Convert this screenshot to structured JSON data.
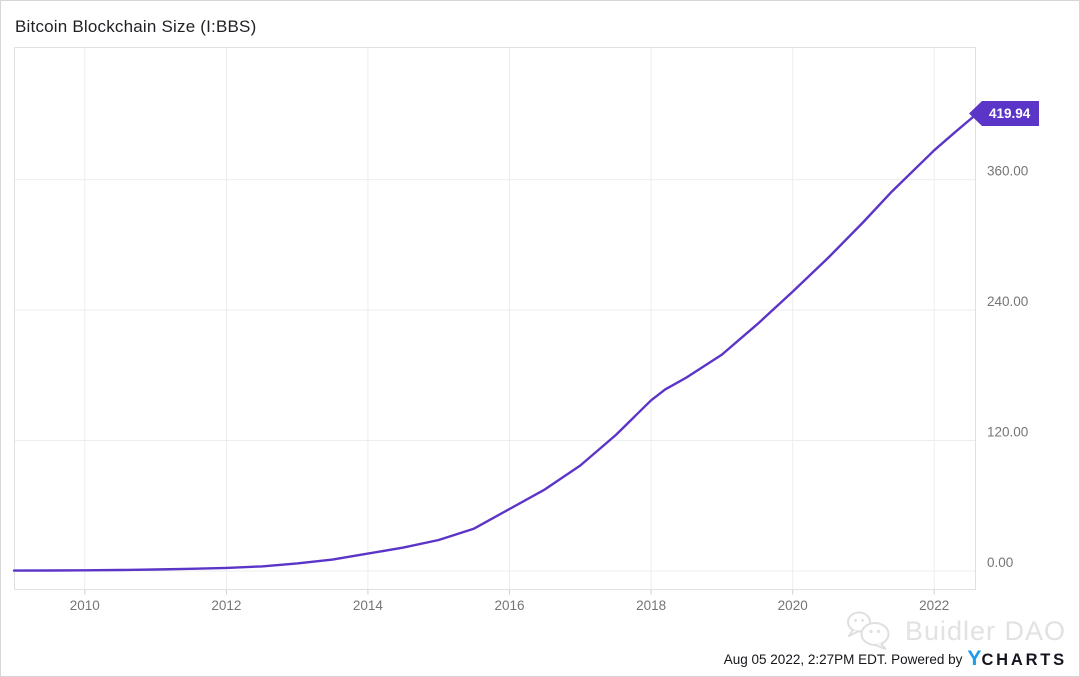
{
  "page": {
    "title": "Bitcoin Blockchain Size (I:BBS)"
  },
  "chart_data": {
    "type": "line",
    "title": "Bitcoin Blockchain Size (I:BBS)",
    "line_color": "#5b35c7",
    "grid": true,
    "legend_position": "none",
    "x_domain": [
      2009.0,
      2022.59
    ],
    "y_domain": [
      -17.5,
      482
    ],
    "x_ticks": {
      "values": [
        2010,
        2012,
        2014,
        2016,
        2018,
        2020,
        2022
      ],
      "labels": [
        "2010",
        "2012",
        "2014",
        "2016",
        "2018",
        "2020",
        "2022"
      ]
    },
    "y_ticks": {
      "values": [
        0,
        120,
        240,
        360
      ],
      "labels": [
        "0.00",
        "120.00",
        "240.00",
        "360.00"
      ]
    },
    "last_value": 419.94,
    "series": [
      {
        "name": "Bitcoin Blockchain Size (I:BBS)",
        "points": [
          [
            2009.0,
            0.3
          ],
          [
            2009.5,
            0.4
          ],
          [
            2010.0,
            0.6
          ],
          [
            2010.5,
            0.9
          ],
          [
            2011.0,
            1.4
          ],
          [
            2011.5,
            2.0
          ],
          [
            2012.0,
            2.8
          ],
          [
            2012.5,
            4.2
          ],
          [
            2013.0,
            7.0
          ],
          [
            2013.5,
            10.5
          ],
          [
            2014.0,
            16.0
          ],
          [
            2014.5,
            21.5
          ],
          [
            2015.0,
            28.5
          ],
          [
            2015.5,
            39.0
          ],
          [
            2016.0,
            57.0
          ],
          [
            2016.5,
            75.0
          ],
          [
            2017.0,
            97.0
          ],
          [
            2017.5,
            125.0
          ],
          [
            2018.0,
            157.0
          ],
          [
            2018.2,
            167.0
          ],
          [
            2018.5,
            178.0
          ],
          [
            2019.0,
            199.0
          ],
          [
            2019.5,
            227.0
          ],
          [
            2020.0,
            257.0
          ],
          [
            2020.5,
            288.0
          ],
          [
            2021.0,
            321.0
          ],
          [
            2021.4,
            349.0
          ],
          [
            2022.0,
            387.0
          ],
          [
            2022.3,
            404.0
          ],
          [
            2022.59,
            419.94
          ]
        ]
      }
    ]
  },
  "badge": {
    "label": "419.94",
    "color": "#5b35c7"
  },
  "watermark": {
    "label": "Buidler DAO"
  },
  "footer": {
    "timestamp": "Aug 05 2022, 2:27PM EDT. Powered by",
    "ycharts_y": "Y",
    "ycharts_charts": "CHARTS"
  }
}
